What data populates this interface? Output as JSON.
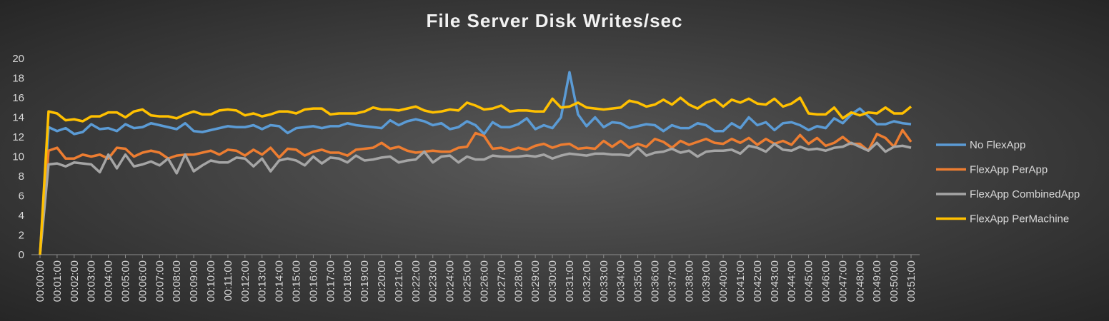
{
  "chart_data": {
    "type": "line",
    "title": "File Server Disk Writes/sec",
    "categories": [
      "00:00:00",
      null,
      "00:01:00",
      null,
      "00:02:00",
      null,
      "00:03:00",
      null,
      "00:04:00",
      null,
      "00:05:00",
      null,
      "00:06:00",
      null,
      "00:07:00",
      null,
      "00:08:00",
      null,
      "00:09:00",
      null,
      "00:10:00",
      null,
      "00:11:00",
      null,
      "00:12:00",
      null,
      "00:13:00",
      null,
      "00:14:00",
      null,
      "00:15:00",
      null,
      "00:16:00",
      null,
      "00:17:00",
      null,
      "00:18:00",
      null,
      "00:19:00",
      null,
      "00:20:00",
      null,
      "00:21:00",
      null,
      "00:22:00",
      null,
      "00:23:00",
      null,
      "00:24:00",
      null,
      "00:25:00",
      null,
      "00:26:00",
      null,
      "00:27:00",
      null,
      "00:28:00",
      null,
      "00:29:00",
      null,
      "00:30:00",
      null,
      "00:31:00",
      null,
      "00:32:00",
      null,
      "00:33:00",
      null,
      "00:34:00",
      null,
      "00:35:00",
      null,
      "00:36:00",
      null,
      "00:37:00",
      null,
      "00:38:00",
      null,
      "00:39:00",
      null,
      "00:40:00",
      null,
      "00:41:00",
      null,
      "00:42:00",
      null,
      "00:43:00",
      null,
      "00:44:00",
      null,
      "00:45:00",
      null,
      "00:46:00",
      null,
      "00:47:00",
      null,
      "00:48:00",
      null,
      "00:49:00",
      null,
      "00:50:00",
      null,
      "00:51:00"
    ],
    "series": [
      {
        "name": "No FlexApp",
        "color": "#5b9bd5",
        "values": [
          0,
          13.0,
          12.6,
          12.9,
          12.3,
          12.5,
          13.3,
          12.8,
          12.9,
          12.6,
          13.3,
          12.9,
          13.0,
          13.4,
          13.2,
          13.0,
          12.8,
          13.4,
          12.6,
          12.5,
          12.7,
          12.9,
          13.1,
          13.0,
          13.0,
          13.2,
          12.8,
          13.2,
          13.1,
          12.4,
          12.9,
          13.0,
          13.1,
          12.9,
          13.1,
          13.1,
          13.4,
          13.2,
          13.1,
          13.0,
          12.9,
          13.7,
          13.2,
          13.6,
          13.8,
          13.6,
          13.2,
          13.4,
          12.8,
          13.0,
          13.6,
          13.2,
          12.3,
          13.5,
          13.0,
          13.0,
          13.3,
          13.9,
          12.8,
          13.2,
          12.9,
          14.0,
          18.6,
          14.3,
          13.1,
          14.0,
          13.0,
          13.5,
          13.4,
          12.9,
          13.1,
          13.3,
          13.2,
          12.6,
          13.2,
          12.9,
          12.9,
          13.4,
          13.2,
          12.6,
          12.6,
          13.4,
          12.9,
          14.0,
          13.2,
          13.5,
          12.7,
          13.4,
          13.5,
          13.2,
          12.7,
          13.1,
          12.9,
          13.9,
          13.4,
          14.3,
          14.9,
          14.1,
          13.3,
          13.3,
          13.6,
          13.4,
          13.3
        ]
      },
      {
        "name": "FlexApp PerApp",
        "color": "#ed7d31",
        "values": [
          0,
          10.6,
          10.9,
          9.8,
          9.8,
          10.2,
          10.0,
          10.2,
          9.8,
          10.9,
          10.8,
          10.0,
          10.4,
          10.6,
          10.4,
          9.8,
          10.1,
          10.2,
          10.2,
          10.4,
          10.6,
          10.2,
          10.7,
          10.6,
          10.1,
          10.7,
          10.2,
          10.9,
          9.9,
          10.8,
          10.7,
          10.1,
          10.5,
          10.7,
          10.4,
          10.4,
          10.1,
          10.7,
          10.8,
          10.9,
          11.4,
          10.8,
          11.0,
          10.6,
          10.4,
          10.5,
          10.6,
          10.5,
          10.5,
          10.9,
          11.0,
          12.4,
          12.1,
          10.8,
          10.9,
          10.6,
          10.9,
          10.7,
          11.1,
          11.3,
          10.9,
          11.2,
          11.3,
          10.8,
          10.9,
          10.8,
          11.6,
          11.0,
          11.6,
          10.9,
          11.3,
          11.0,
          11.8,
          11.5,
          10.9,
          11.6,
          11.2,
          11.5,
          11.8,
          11.4,
          11.3,
          11.8,
          11.4,
          11.9,
          11.2,
          11.8,
          11.3,
          11.6,
          11.2,
          12.2,
          11.3,
          11.9,
          11.1,
          11.4,
          12.0,
          11.3,
          11.3,
          10.6,
          12.3,
          11.9,
          11.0,
          12.7,
          11.5
        ]
      },
      {
        "name": "FlexApp CombinedApp",
        "color": "#a5a5a5",
        "values": [
          0,
          9.2,
          9.3,
          9.0,
          9.4,
          9.3,
          9.2,
          8.4,
          10.2,
          8.8,
          10.2,
          9.0,
          9.2,
          9.5,
          9.1,
          9.8,
          8.3,
          10.2,
          8.5,
          9.1,
          9.6,
          9.4,
          9.4,
          9.9,
          9.8,
          9.0,
          9.8,
          8.5,
          9.6,
          9.8,
          9.6,
          9.1,
          10.0,
          9.3,
          9.9,
          9.8,
          9.4,
          10.1,
          9.6,
          9.7,
          9.9,
          10.0,
          9.4,
          9.6,
          9.7,
          10.5,
          9.4,
          10.0,
          10.1,
          9.4,
          10.0,
          9.7,
          9.7,
          10.1,
          10.0,
          10.0,
          10.0,
          10.1,
          10.0,
          10.2,
          9.8,
          10.1,
          10.3,
          10.2,
          10.1,
          10.3,
          10.3,
          10.2,
          10.2,
          10.1,
          10.9,
          10.1,
          10.4,
          10.5,
          10.8,
          10.4,
          10.6,
          10.0,
          10.5,
          10.6,
          10.6,
          10.7,
          10.3,
          11.1,
          10.9,
          10.5,
          11.3,
          10.7,
          10.6,
          11.0,
          10.7,
          10.8,
          10.6,
          10.9,
          11.0,
          11.4,
          11.0,
          10.6,
          11.4,
          10.5,
          11.0,
          11.1,
          10.9
        ]
      },
      {
        "name": "FlexApp PerMachine",
        "color": "#ffc000",
        "values": [
          0,
          14.6,
          14.4,
          13.7,
          13.8,
          13.6,
          14.1,
          14.1,
          14.5,
          14.5,
          14.0,
          14.6,
          14.8,
          14.2,
          14.1,
          14.1,
          13.9,
          14.3,
          14.6,
          14.3,
          14.3,
          14.7,
          14.8,
          14.7,
          14.2,
          14.4,
          14.1,
          14.3,
          14.6,
          14.6,
          14.4,
          14.8,
          14.9,
          14.9,
          14.3,
          14.4,
          14.4,
          14.4,
          14.6,
          15.0,
          14.8,
          14.8,
          14.7,
          14.9,
          15.1,
          14.7,
          14.5,
          14.6,
          14.8,
          14.7,
          15.5,
          15.2,
          14.8,
          14.9,
          15.2,
          14.6,
          14.7,
          14.7,
          14.6,
          14.6,
          15.9,
          15.0,
          15.1,
          15.5,
          15.0,
          14.9,
          14.8,
          14.9,
          15.0,
          15.7,
          15.5,
          15.1,
          15.3,
          15.8,
          15.3,
          16.0,
          15.3,
          14.9,
          15.5,
          15.8,
          15.1,
          15.8,
          15.5,
          15.9,
          15.4,
          15.3,
          15.9,
          15.1,
          15.4,
          16.0,
          14.4,
          14.3,
          14.3,
          15.0,
          13.9,
          14.5,
          14.2,
          14.5,
          14.4,
          15.0,
          14.4,
          14.4,
          15.1
        ]
      }
    ],
    "ylim": [
      0,
      20
    ],
    "yticks": [
      0,
      2,
      4,
      6,
      8,
      10,
      12,
      14,
      16,
      18,
      20
    ],
    "grid": false,
    "legend": "right"
  }
}
